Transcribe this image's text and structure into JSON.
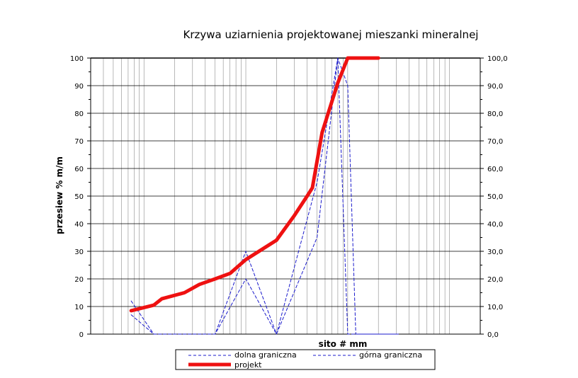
{
  "chart_data": {
    "type": "line",
    "title": "Krzywa uziarnienia projektowanej mieszanki mineralnej",
    "ylabel": "przesiew % m/m",
    "xlabel": "sito # mm",
    "ylim": [
      0,
      100
    ],
    "y_ticks_left": [
      "0",
      "10",
      "20",
      "30",
      "40",
      "50",
      "60",
      "70",
      "80",
      "90",
      "100"
    ],
    "y_ticks_right": [
      "0,0",
      "10,0",
      "20,0",
      "30,0",
      "40,0",
      "50,0",
      "60,0",
      "70,0",
      "80,0",
      "90,0",
      "100,0"
    ],
    "x_scale": "log",
    "xlim": [
      0.03,
      200
    ],
    "grid": true,
    "legend_position": "bottom",
    "series": [
      {
        "name": "dolna graniczna",
        "style": "dashed",
        "color": "#1a1acc",
        "points": [
          [
            0.075,
            7
          ],
          [
            0.125,
            0
          ],
          [
            0.5,
            0
          ],
          [
            1.0,
            20
          ],
          [
            2.0,
            0
          ],
          [
            5.0,
            35
          ],
          [
            8.0,
            100
          ],
          [
            10.0,
            0
          ],
          [
            14.0,
            0
          ],
          [
            22.4,
            0
          ],
          [
            31.5,
            0
          ]
        ]
      },
      {
        "name": "górna graniczna",
        "style": "dashed",
        "color": "#1a1acc",
        "points": [
          [
            0.075,
            12
          ],
          [
            0.125,
            0
          ],
          [
            0.5,
            0
          ],
          [
            1.0,
            30
          ],
          [
            2.0,
            0
          ],
          [
            5.0,
            55
          ],
          [
            8.0,
            100
          ],
          [
            10.0,
            90
          ],
          [
            12.0,
            0
          ],
          [
            14.0,
            0
          ],
          [
            22.4,
            0
          ],
          [
            31.5,
            0
          ]
        ]
      },
      {
        "name": "projekt",
        "style": "solid",
        "color": "#ee1111",
        "points": [
          [
            0.075,
            8.5
          ],
          [
            0.125,
            10.5
          ],
          [
            0.15,
            12.8
          ],
          [
            0.25,
            15
          ],
          [
            0.35,
            18
          ],
          [
            0.5,
            20
          ],
          [
            0.7,
            22
          ],
          [
            1.0,
            27
          ],
          [
            2.0,
            34
          ],
          [
            3.0,
            43
          ],
          [
            4.0,
            50
          ],
          [
            4.5,
            53
          ],
          [
            5.6,
            73
          ],
          [
            8.0,
            91
          ],
          [
            10.0,
            100
          ],
          [
            20.0,
            100
          ]
        ]
      }
    ]
  }
}
